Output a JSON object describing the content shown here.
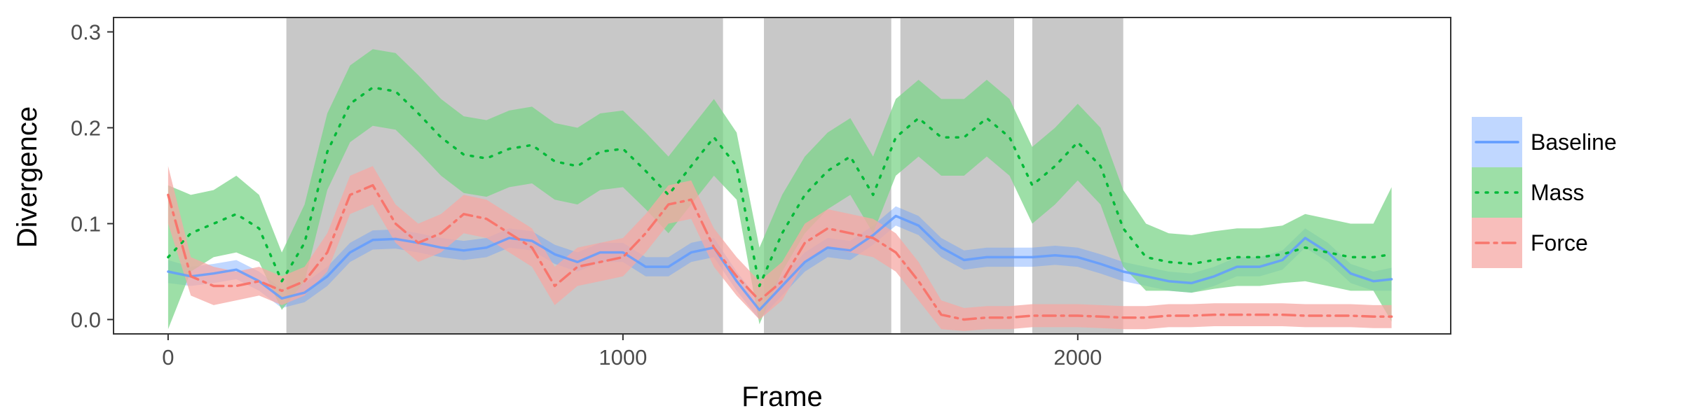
{
  "chart_data": {
    "type": "line",
    "xlabel": "Frame",
    "ylabel": "Divergence",
    "xlim": [
      -120,
      2820
    ],
    "ylim": [
      -0.015,
      0.315
    ],
    "x_ticks": [
      0,
      1000,
      2000
    ],
    "x_tick_labels": [
      "0",
      "1000",
      "2000"
    ],
    "y_ticks": [
      0.0,
      0.1,
      0.2,
      0.3
    ],
    "y_tick_labels": [
      "0.0",
      "0.1",
      "0.2",
      "0.3"
    ],
    "grid": false,
    "legend_position": "right",
    "shaded_regions": [
      [
        260,
        1220
      ],
      [
        1310,
        1590
      ],
      [
        1610,
        1860
      ],
      [
        1900,
        2100
      ]
    ],
    "shaded_color": "#c8c8c8",
    "x": [
      0,
      50,
      100,
      150,
      200,
      250,
      300,
      350,
      400,
      450,
      500,
      550,
      600,
      650,
      700,
      750,
      800,
      850,
      900,
      950,
      1000,
      1050,
      1100,
      1150,
      1200,
      1250,
      1300,
      1350,
      1400,
      1450,
      1500,
      1550,
      1600,
      1650,
      1700,
      1750,
      1800,
      1850,
      1900,
      1950,
      2000,
      2050,
      2100,
      2150,
      2200,
      2250,
      2300,
      2350,
      2400,
      2450,
      2500,
      2550,
      2600,
      2650,
      2690
    ],
    "series": [
      {
        "name": "Baseline",
        "color": "#619cff",
        "style": "solid",
        "values": [
          0.05,
          0.045,
          0.048,
          0.052,
          0.04,
          0.022,
          0.028,
          0.045,
          0.07,
          0.083,
          0.084,
          0.08,
          0.075,
          0.072,
          0.075,
          0.085,
          0.082,
          0.068,
          0.06,
          0.07,
          0.07,
          0.055,
          0.055,
          0.07,
          0.075,
          0.04,
          0.01,
          0.035,
          0.06,
          0.075,
          0.072,
          0.088,
          0.108,
          0.098,
          0.075,
          0.062,
          0.065,
          0.065,
          0.065,
          0.067,
          0.065,
          0.058,
          0.05,
          0.045,
          0.04,
          0.038,
          0.045,
          0.055,
          0.055,
          0.062,
          0.085,
          0.07,
          0.048,
          0.04,
          0.042
        ],
        "band_half_width": [
          0.012,
          0.01,
          0.01,
          0.01,
          0.01,
          0.01,
          0.01,
          0.01,
          0.01,
          0.01,
          0.01,
          0.01,
          0.01,
          0.01,
          0.01,
          0.01,
          0.01,
          0.01,
          0.01,
          0.01,
          0.01,
          0.01,
          0.01,
          0.01,
          0.01,
          0.01,
          0.01,
          0.01,
          0.01,
          0.01,
          0.01,
          0.01,
          0.01,
          0.01,
          0.01,
          0.01,
          0.01,
          0.01,
          0.01,
          0.01,
          0.01,
          0.01,
          0.01,
          0.01,
          0.01,
          0.01,
          0.01,
          0.01,
          0.01,
          0.01,
          0.01,
          0.01,
          0.01,
          0.01,
          0.012
        ]
      },
      {
        "name": "Mass",
        "color": "#00ba38",
        "band_color": "#7cd48a",
        "style": "dotted",
        "values": [
          0.065,
          0.09,
          0.1,
          0.11,
          0.095,
          0.04,
          0.08,
          0.175,
          0.225,
          0.242,
          0.238,
          0.215,
          0.19,
          0.172,
          0.168,
          0.178,
          0.182,
          0.165,
          0.16,
          0.175,
          0.178,
          0.155,
          0.13,
          0.16,
          0.19,
          0.16,
          0.035,
          0.09,
          0.13,
          0.155,
          0.17,
          0.13,
          0.19,
          0.21,
          0.19,
          0.19,
          0.21,
          0.19,
          0.14,
          0.16,
          0.185,
          0.16,
          0.095,
          0.065,
          0.06,
          0.058,
          0.062,
          0.065,
          0.065,
          0.068,
          0.075,
          0.07,
          0.065,
          0.065,
          0.068
        ],
        "band_half_width": [
          0.075,
          0.04,
          0.035,
          0.04,
          0.035,
          0.03,
          0.04,
          0.04,
          0.04,
          0.04,
          0.04,
          0.04,
          0.04,
          0.04,
          0.04,
          0.04,
          0.04,
          0.04,
          0.04,
          0.04,
          0.04,
          0.04,
          0.04,
          0.04,
          0.04,
          0.035,
          0.04,
          0.04,
          0.04,
          0.04,
          0.04,
          0.04,
          0.04,
          0.04,
          0.04,
          0.04,
          0.04,
          0.04,
          0.04,
          0.04,
          0.04,
          0.04,
          0.04,
          0.035,
          0.03,
          0.03,
          0.03,
          0.03,
          0.03,
          0.03,
          0.035,
          0.035,
          0.035,
          0.035,
          0.07
        ]
      },
      {
        "name": "Force",
        "color": "#f8766d",
        "band_color": "#f5a8a4",
        "style": "dashdot",
        "values": [
          0.13,
          0.045,
          0.035,
          0.035,
          0.04,
          0.03,
          0.04,
          0.07,
          0.13,
          0.14,
          0.1,
          0.08,
          0.09,
          0.11,
          0.105,
          0.09,
          0.075,
          0.035,
          0.055,
          0.06,
          0.065,
          0.09,
          0.12,
          0.125,
          0.075,
          0.045,
          0.02,
          0.04,
          0.08,
          0.095,
          0.09,
          0.085,
          0.07,
          0.04,
          0.005,
          0.0,
          0.002,
          0.002,
          0.004,
          0.004,
          0.004,
          0.003,
          0.002,
          0.002,
          0.004,
          0.004,
          0.005,
          0.005,
          0.005,
          0.005,
          0.004,
          0.004,
          0.004,
          0.003,
          0.003
        ],
        "band_half_width": [
          0.03,
          0.02,
          0.02,
          0.015,
          0.015,
          0.015,
          0.015,
          0.02,
          0.02,
          0.02,
          0.02,
          0.02,
          0.02,
          0.02,
          0.02,
          0.02,
          0.02,
          0.02,
          0.02,
          0.02,
          0.02,
          0.02,
          0.02,
          0.02,
          0.02,
          0.02,
          0.02,
          0.02,
          0.02,
          0.02,
          0.02,
          0.02,
          0.02,
          0.02,
          0.015,
          0.012,
          0.012,
          0.012,
          0.012,
          0.012,
          0.012,
          0.012,
          0.012,
          0.012,
          0.012,
          0.012,
          0.012,
          0.012,
          0.012,
          0.012,
          0.012,
          0.012,
          0.012,
          0.012,
          0.012
        ]
      }
    ]
  }
}
